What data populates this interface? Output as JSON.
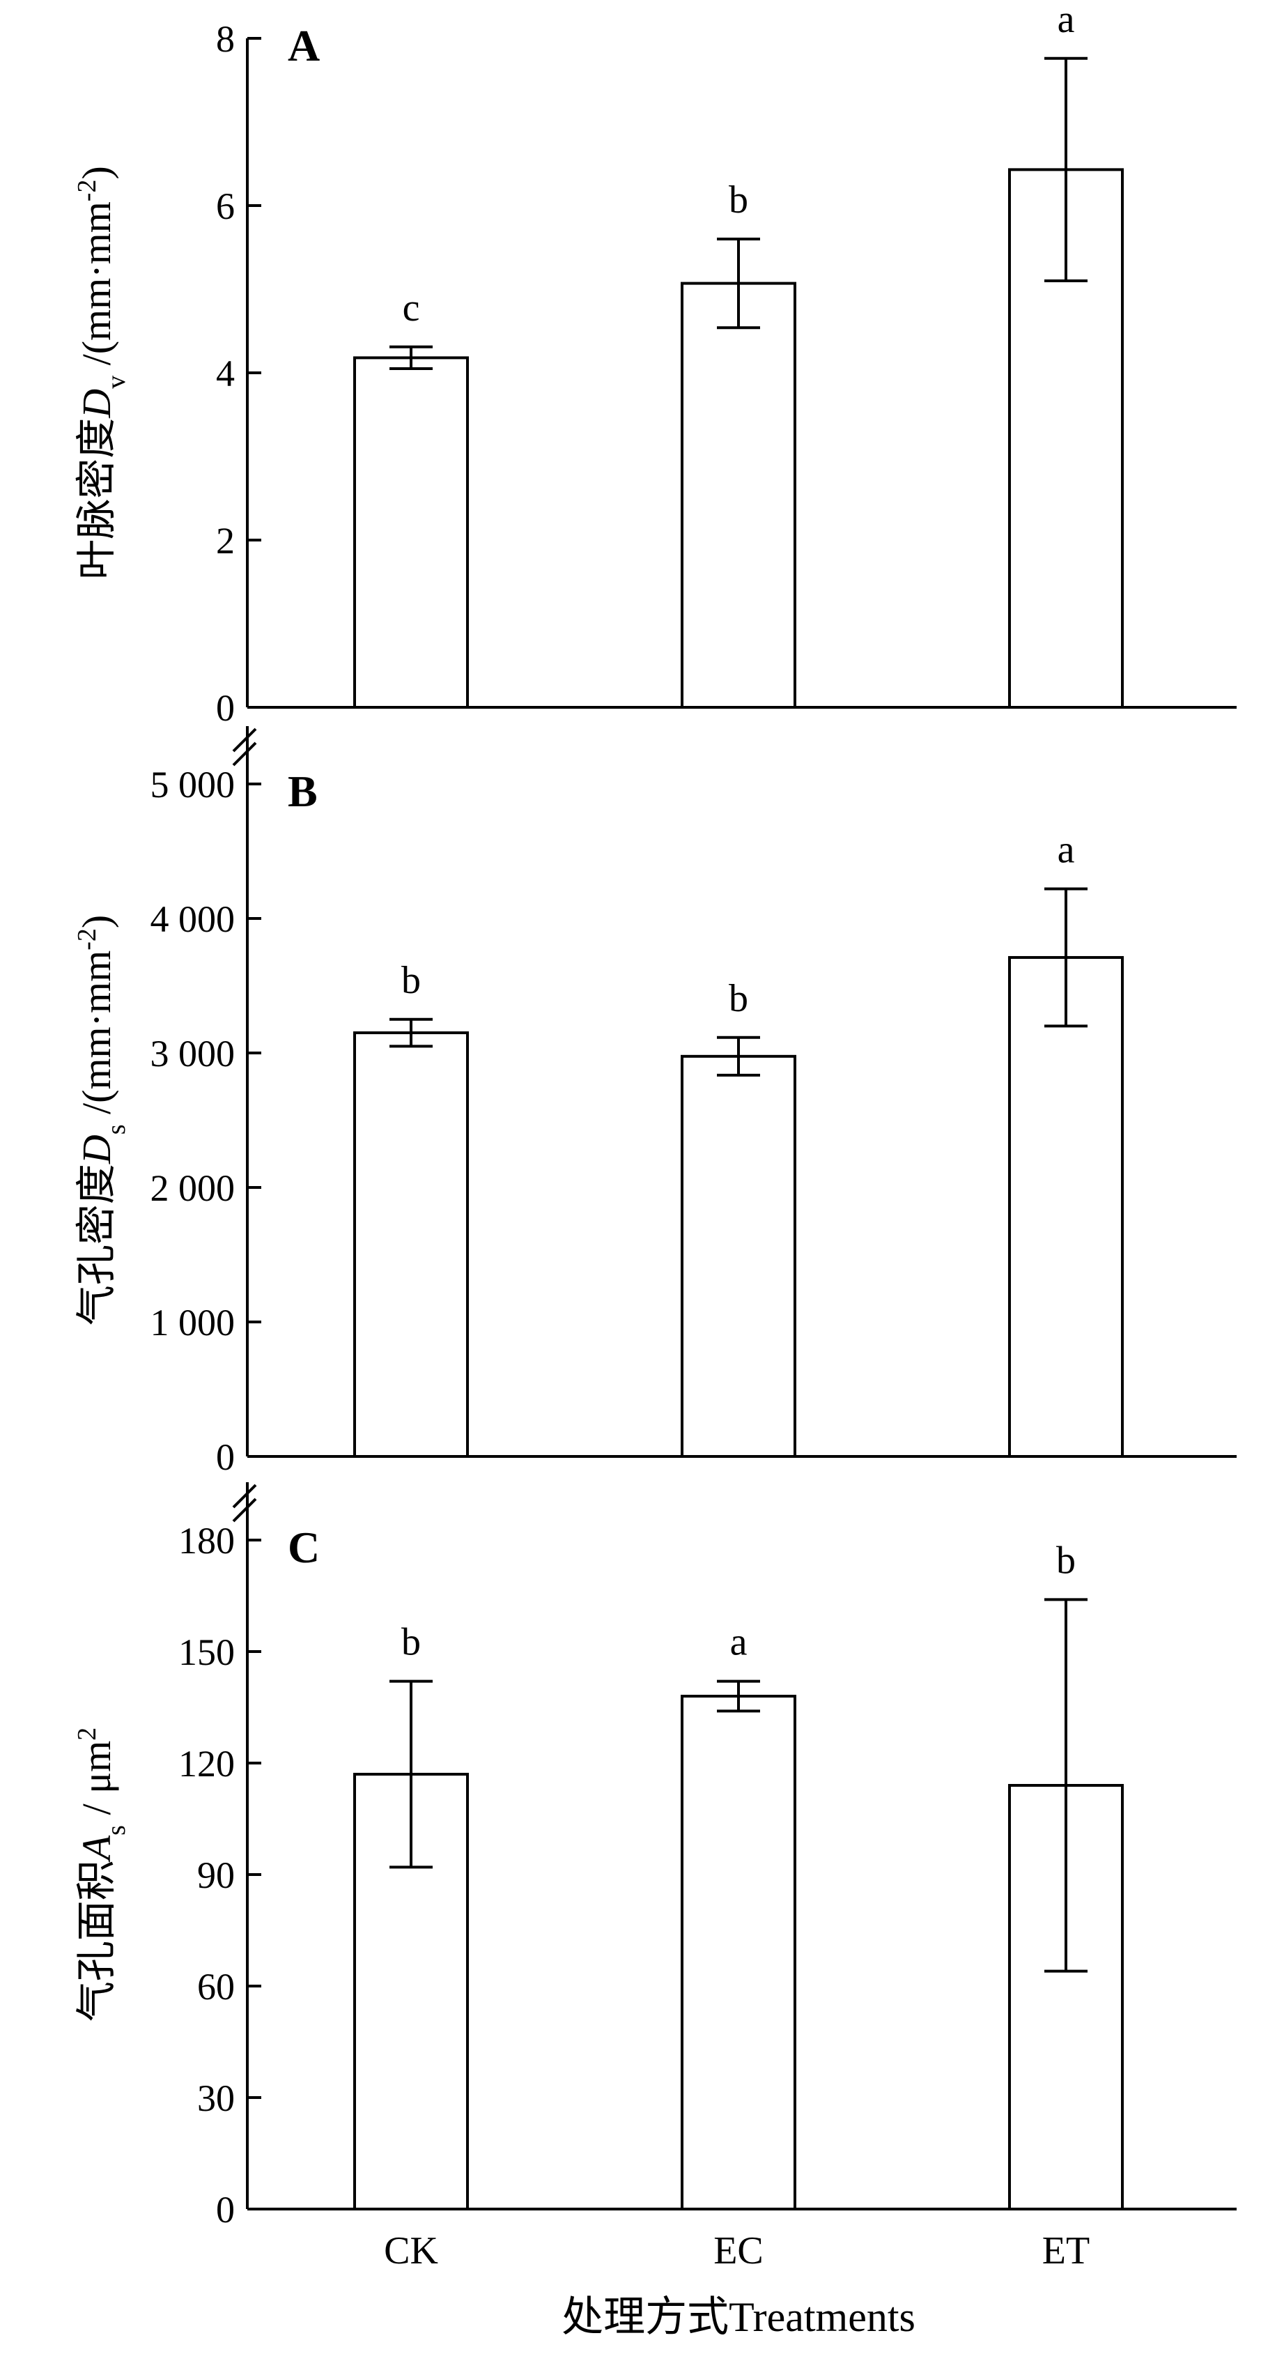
{
  "x_axis": {
    "label": "处理方式Treatments"
  },
  "chart_data": [
    {
      "type": "bar",
      "panel": "A",
      "categories": [
        "CK",
        "EC",
        "ET"
      ],
      "values": [
        4.18,
        5.07,
        6.43
      ],
      "error": [
        0.13,
        0.53,
        1.33
      ],
      "significance": [
        "c",
        "b",
        "a"
      ],
      "ylabel_parts": [
        "叶脉密度",
        "D",
        "v",
        " /(mm·mm",
        "-2",
        ")"
      ],
      "ylim": [
        0,
        8
      ],
      "yticks": [
        0,
        2,
        4,
        6,
        8
      ],
      "ytick_labels": [
        "0",
        "2",
        "4",
        "6",
        "8"
      ],
      "grid": false
    },
    {
      "type": "bar",
      "panel": "B",
      "categories": [
        "CK",
        "EC",
        "ET"
      ],
      "values": [
        3150,
        2975,
        3710
      ],
      "error": [
        100,
        140,
        510
      ],
      "significance": [
        "b",
        "b",
        "a"
      ],
      "ylabel_parts": [
        "气孔密度",
        "D",
        "s",
        " /(mm·mm",
        "-2",
        ")"
      ],
      "ylim": [
        0,
        5000
      ],
      "yticks": [
        0,
        1000,
        2000,
        3000,
        4000,
        5000
      ],
      "ytick_labels": [
        "0",
        "1 000",
        "2 000",
        "3 000",
        "4 000",
        "5 000"
      ],
      "grid": false
    },
    {
      "type": "bar",
      "panel": "C",
      "categories": [
        "CK",
        "EC",
        "ET"
      ],
      "values": [
        117,
        138,
        114
      ],
      "error": [
        25,
        4,
        50
      ],
      "significance": [
        "b",
        "a",
        "b"
      ],
      "ylabel_parts": [
        "气孔面积",
        "A",
        "s",
        " / μm",
        "2",
        ""
      ],
      "ylim": [
        0,
        180
      ],
      "yticks": [
        0,
        30,
        60,
        90,
        120,
        150,
        180
      ],
      "ytick_labels": [
        "0",
        "30",
        "60",
        "90",
        "120",
        "150",
        "180"
      ],
      "grid": false
    }
  ]
}
